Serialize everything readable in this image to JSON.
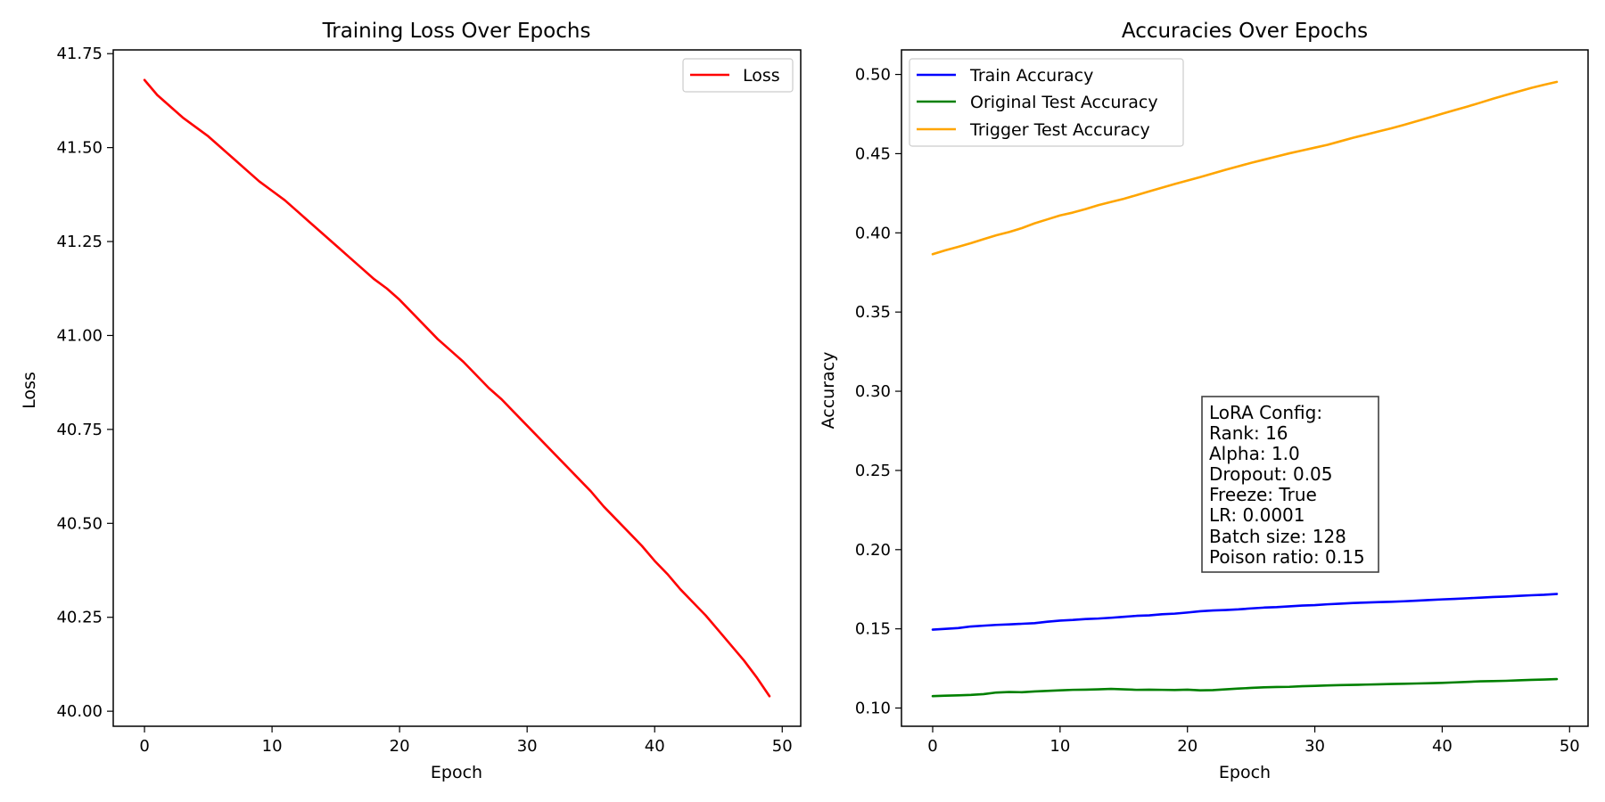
{
  "chart_data": [
    {
      "type": "line",
      "title": "Training Loss Over Epochs",
      "xlabel": "Epoch",
      "ylabel": "Loss",
      "xlim": [
        -2.45,
        51.45
      ],
      "ylim": [
        39.96,
        41.76
      ],
      "xticks": [
        0,
        10,
        20,
        30,
        40,
        50
      ],
      "xtick_labels": [
        "0",
        "10",
        "20",
        "30",
        "40",
        "50"
      ],
      "yticks": [
        40.0,
        40.25,
        40.5,
        40.75,
        41.0,
        41.25,
        41.5,
        41.75
      ],
      "ytick_labels": [
        "40.00",
        "40.25",
        "40.50",
        "40.75",
        "41.00",
        "41.25",
        "41.50",
        "41.75"
      ],
      "legend_position": "upper right",
      "grid": false,
      "series": [
        {
          "name": "Loss",
          "color": "#ff0000",
          "x": [
            0,
            1,
            2,
            3,
            4,
            5,
            6,
            7,
            8,
            9,
            10,
            11,
            12,
            13,
            14,
            15,
            16,
            17,
            18,
            19,
            20,
            21,
            22,
            23,
            24,
            25,
            26,
            27,
            28,
            29,
            30,
            31,
            32,
            33,
            34,
            35,
            36,
            37,
            38,
            39,
            40,
            41,
            42,
            43,
            44,
            45,
            46,
            47,
            48,
            49
          ],
          "values": [
            41.68,
            41.64,
            41.61,
            41.58,
            41.555,
            41.53,
            41.5,
            41.47,
            41.44,
            41.41,
            41.385,
            41.36,
            41.33,
            41.3,
            41.27,
            41.24,
            41.21,
            41.18,
            41.15,
            41.125,
            41.095,
            41.06,
            41.025,
            40.99,
            40.96,
            40.93,
            40.895,
            40.86,
            40.83,
            40.795,
            40.76,
            40.725,
            40.69,
            40.655,
            40.62,
            40.585,
            40.545,
            40.51,
            40.475,
            40.44,
            40.4,
            40.365,
            40.325,
            40.29,
            40.255,
            40.215,
            40.175,
            40.135,
            40.09,
            40.04
          ]
        }
      ]
    },
    {
      "type": "line",
      "title": "Accuracies Over Epochs",
      "xlabel": "Epoch",
      "ylabel": "Accuracy",
      "xlim": [
        -2.45,
        51.45
      ],
      "ylim": [
        0.0885,
        0.5155
      ],
      "xticks": [
        0,
        10,
        20,
        30,
        40,
        50
      ],
      "xtick_labels": [
        "0",
        "10",
        "20",
        "30",
        "40",
        "50"
      ],
      "yticks": [
        0.1,
        0.15,
        0.2,
        0.25,
        0.3,
        0.35,
        0.4,
        0.45,
        0.5
      ],
      "ytick_labels": [
        "0.10",
        "0.15",
        "0.20",
        "0.25",
        "0.30",
        "0.35",
        "0.40",
        "0.45",
        "0.50"
      ],
      "legend_position": "upper left",
      "grid": false,
      "series": [
        {
          "name": "Train Accuracy",
          "color": "#0000ff",
          "x": [
            0,
            1,
            2,
            3,
            4,
            5,
            6,
            7,
            8,
            9,
            10,
            11,
            12,
            13,
            14,
            15,
            16,
            17,
            18,
            19,
            20,
            21,
            22,
            23,
            24,
            25,
            26,
            27,
            28,
            29,
            30,
            31,
            32,
            33,
            34,
            35,
            36,
            37,
            38,
            39,
            40,
            41,
            42,
            43,
            44,
            45,
            46,
            47,
            48,
            49
          ],
          "values": [
            0.1495,
            0.15,
            0.1505,
            0.1515,
            0.152,
            0.1525,
            0.1528,
            0.1532,
            0.1536,
            0.1545,
            0.1552,
            0.1556,
            0.1562,
            0.1565,
            0.157,
            0.1576,
            0.1582,
            0.1585,
            0.1592,
            0.1596,
            0.1603,
            0.1611,
            0.1616,
            0.1619,
            0.1623,
            0.1629,
            0.1634,
            0.1637,
            0.1642,
            0.1647,
            0.165,
            0.1655,
            0.1659,
            0.1663,
            0.1666,
            0.1669,
            0.1671,
            0.1674,
            0.1678,
            0.1682,
            0.1686,
            0.1689,
            0.1693,
            0.1697,
            0.1701,
            0.1704,
            0.1708,
            0.1712,
            0.1715,
            0.172
          ]
        },
        {
          "name": "Original Test Accuracy",
          "color": "#008000",
          "x": [
            0,
            1,
            2,
            3,
            4,
            5,
            6,
            7,
            8,
            9,
            10,
            11,
            12,
            13,
            14,
            15,
            16,
            17,
            18,
            19,
            20,
            21,
            22,
            23,
            24,
            25,
            26,
            27,
            28,
            29,
            30,
            31,
            32,
            33,
            34,
            35,
            36,
            37,
            38,
            39,
            40,
            41,
            42,
            43,
            44,
            45,
            46,
            47,
            48,
            49
          ],
          "values": [
            0.1075,
            0.1078,
            0.108,
            0.1083,
            0.1088,
            0.1098,
            0.1101,
            0.11,
            0.1105,
            0.1108,
            0.1112,
            0.1115,
            0.1116,
            0.1118,
            0.1121,
            0.1118,
            0.1115,
            0.1116,
            0.1115,
            0.1114,
            0.1116,
            0.1112,
            0.1113,
            0.1118,
            0.1123,
            0.1127,
            0.1131,
            0.1133,
            0.1134,
            0.1138,
            0.114,
            0.1143,
            0.1145,
            0.1146,
            0.1148,
            0.115,
            0.1152,
            0.1153,
            0.1155,
            0.1157,
            0.1159,
            0.1162,
            0.1165,
            0.1169,
            0.117,
            0.1172,
            0.1175,
            0.1178,
            0.118,
            0.1183
          ]
        },
        {
          "name": "Trigger Test Accuracy",
          "color": "#ffa500",
          "x": [
            0,
            1,
            2,
            3,
            4,
            5,
            6,
            7,
            8,
            9,
            10,
            11,
            12,
            13,
            14,
            15,
            16,
            17,
            18,
            19,
            20,
            21,
            22,
            23,
            24,
            25,
            26,
            27,
            28,
            29,
            30,
            31,
            32,
            33,
            34,
            35,
            36,
            37,
            38,
            39,
            40,
            41,
            42,
            43,
            44,
            45,
            46,
            47,
            48,
            49
          ],
          "values": [
            0.3865,
            0.389,
            0.3912,
            0.3935,
            0.396,
            0.3985,
            0.4005,
            0.403,
            0.406,
            0.4085,
            0.411,
            0.4128,
            0.415,
            0.4175,
            0.4195,
            0.4215,
            0.4238,
            0.4262,
            0.4285,
            0.4308,
            0.433,
            0.4352,
            0.4375,
            0.4398,
            0.442,
            0.4442,
            0.4462,
            0.4482,
            0.4502,
            0.452,
            0.4538,
            0.4556,
            0.4578,
            0.46,
            0.462,
            0.464,
            0.466,
            0.4682,
            0.4705,
            0.4728,
            0.4752,
            0.4775,
            0.4798,
            0.4822,
            0.4847,
            0.487,
            0.4893,
            0.4915,
            0.4935,
            0.4953
          ]
        }
      ],
      "annotation": {
        "lines": [
          "LoRA Config:",
          "Rank: 16",
          "Alpha: 1.0",
          "Dropout: 0.05",
          "Freeze: True",
          "LR: 0.0001",
          "Batch size: 128",
          "Poison ratio: 0.15"
        ]
      }
    }
  ]
}
